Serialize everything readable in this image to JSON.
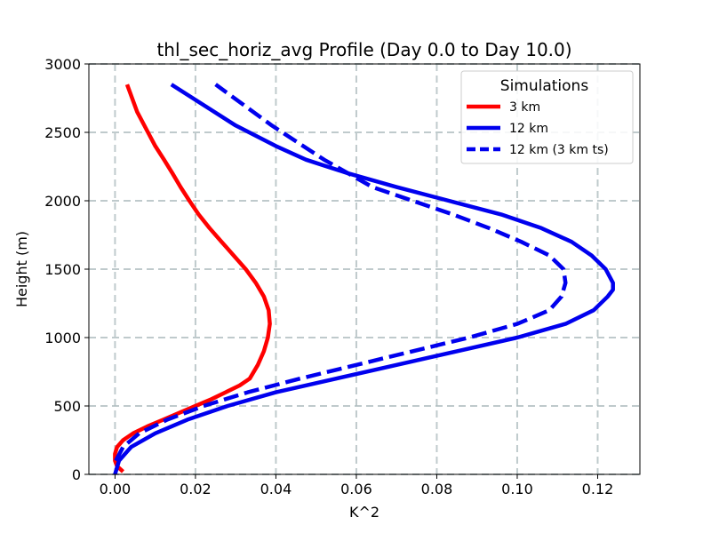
{
  "chart_data": {
    "type": "line",
    "title": "thl_sec_horiz_avg Profile (Day 0.0 to Day 10.0)",
    "xlabel": "K^2",
    "ylabel": "Height (m)",
    "xlim": [
      -0.0065,
      0.1305
    ],
    "ylim": [
      0,
      3000
    ],
    "xticks": [
      0.0,
      0.02,
      0.04,
      0.06,
      0.08,
      0.1,
      0.12
    ],
    "xtick_labels": [
      "0.00",
      "0.02",
      "0.04",
      "0.06",
      "0.08",
      "0.10",
      "0.12"
    ],
    "yticks": [
      0,
      500,
      1000,
      1500,
      2000,
      2500,
      3000
    ],
    "ytick_labels": [
      "0",
      "500",
      "1000",
      "1500",
      "2000",
      "2500",
      "3000"
    ],
    "grid": true,
    "legend": {
      "title": "Simulations",
      "position": "top-right"
    },
    "series": [
      {
        "name": "3 km",
        "color": "#ff0000",
        "style": "solid",
        "x": [
          0.002,
          0.0005,
          0.0,
          0.0,
          0.0005,
          0.002,
          0.0045,
          0.008,
          0.012,
          0.016,
          0.02,
          0.024,
          0.0275,
          0.031,
          0.0335,
          0.0355,
          0.037,
          0.038,
          0.0385,
          0.0382,
          0.037,
          0.035,
          0.0325,
          0.0295,
          0.0265,
          0.0235,
          0.0208,
          0.0185,
          0.0163,
          0.0143,
          0.0122,
          0.01,
          0.0082,
          0.0055,
          0.003
        ],
        "y": [
          20,
          60,
          100,
          150,
          200,
          250,
          300,
          350,
          400,
          450,
          500,
          550,
          600,
          650,
          700,
          800,
          900,
          1000,
          1100,
          1200,
          1300,
          1400,
          1500,
          1600,
          1700,
          1800,
          1900,
          2000,
          2100,
          2200,
          2300,
          2400,
          2500,
          2650,
          2850
        ]
      },
      {
        "name": "12 km",
        "color": "#0000ee",
        "style": "solid",
        "x": [
          0.0,
          0.001,
          0.004,
          0.01,
          0.018,
          0.028,
          0.04,
          0.055,
          0.07,
          0.085,
          0.1,
          0.112,
          0.119,
          0.1225,
          0.1238,
          0.1238,
          0.122,
          0.1185,
          0.1135,
          0.106,
          0.096,
          0.083,
          0.07,
          0.058,
          0.0475,
          0.04,
          0.03,
          0.014
        ],
        "y": [
          0,
          100,
          200,
          300,
          400,
          500,
          600,
          700,
          800,
          900,
          1000,
          1100,
          1200,
          1300,
          1350,
          1400,
          1500,
          1600,
          1700,
          1800,
          1900,
          2000,
          2100,
          2200,
          2300,
          2400,
          2550,
          2850
        ]
      },
      {
        "name": "12 km (3 km ts)",
        "color": "#0000ee",
        "style": "dashed",
        "x": [
          0.0002,
          0.002,
          0.006,
          0.013,
          0.022,
          0.033,
          0.046,
          0.06,
          0.074,
          0.088,
          0.1,
          0.108,
          0.111,
          0.112,
          0.1115,
          0.108,
          0.101,
          0.093,
          0.084,
          0.074,
          0.064,
          0.052,
          0.039,
          0.025
        ],
        "y": [
          100,
          200,
          300,
          400,
          500,
          600,
          700,
          800,
          900,
          1000,
          1100,
          1200,
          1300,
          1400,
          1500,
          1600,
          1700,
          1800,
          1900,
          2000,
          2100,
          2300,
          2550,
          2850
        ]
      }
    ]
  }
}
